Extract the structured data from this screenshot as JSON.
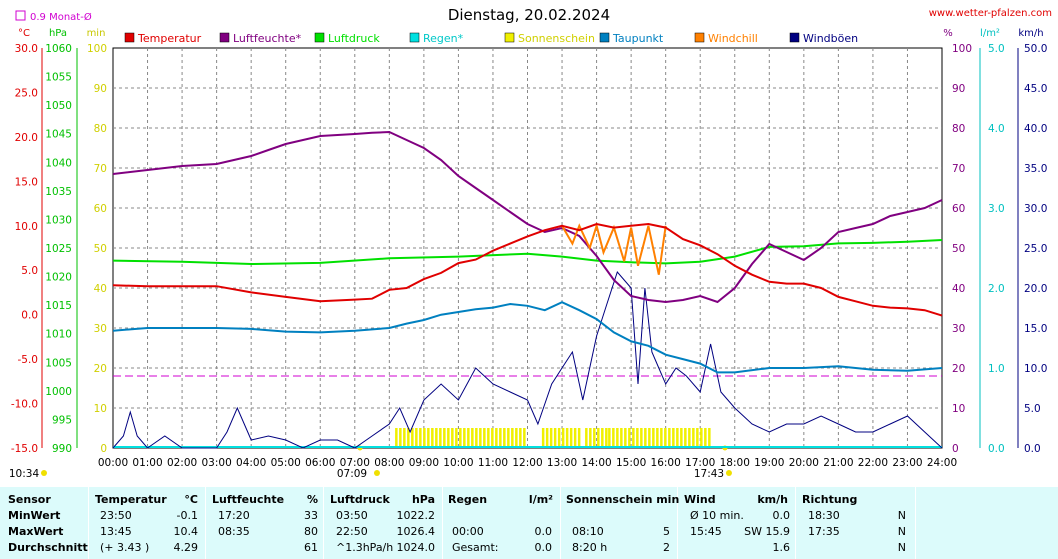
{
  "header": {
    "title": "Dienstag, 20.02.2024",
    "website": "www.wetter-pfalzen.com",
    "rain_box_label": "0.9 Monat-Ø"
  },
  "units": {
    "temp": "°C",
    "hpa": "hPa",
    "min": "min",
    "pct": "%",
    "lm2": "l/m²",
    "kmh": "km/h"
  },
  "legend": [
    {
      "label": "Temperatur",
      "color": "#e00000"
    },
    {
      "label": "Luftfeuchte*",
      "color": "#800080"
    },
    {
      "label": "Luftdruck",
      "color": "#00e000"
    },
    {
      "label": "Regen*",
      "color": "#00e0e0"
    },
    {
      "label": "Sonnenschein",
      "color": "#f0f000"
    },
    {
      "label": "Taupunkt",
      "color": "#0080c0"
    },
    {
      "label": "Windchill",
      "color": "#ff8000"
    },
    {
      "label": "Windböen",
      "color": "#000080"
    }
  ],
  "axes": {
    "temp_ticks": [
      "30.0",
      "25.0",
      "20.0",
      "15.0",
      "10.0",
      "5.0",
      "0.0",
      "-5.0",
      "-10.0",
      "-15.0"
    ],
    "hpa_ticks": [
      "1060",
      "1055",
      "1050",
      "1045",
      "1040",
      "1035",
      "1030",
      "1025",
      "1020",
      "1015",
      "1010",
      "1005",
      "1000",
      "995",
      "990"
    ],
    "min_ticks": [
      "100",
      "90",
      "80",
      "70",
      "60",
      "50",
      "40",
      "30",
      "20",
      "10",
      "0"
    ],
    "pct_ticks": [
      "100",
      "90",
      "80",
      "70",
      "60",
      "50",
      "40",
      "30",
      "20",
      "10",
      "0"
    ],
    "lm2_ticks": [
      "5.0",
      "4.0",
      "3.0",
      "2.0",
      "1.0",
      "0.0"
    ],
    "kmh_ticks": [
      "50.0",
      "45.0",
      "40.0",
      "35.0",
      "30.0",
      "25.0",
      "20.0",
      "15.0",
      "10.0",
      "5.0",
      "0.0"
    ],
    "time_ticks": [
      "00:00",
      "01:00",
      "02:00",
      "03:00",
      "04:00",
      "05:00",
      "06:00",
      "07:00",
      "08:00",
      "09:00",
      "10:00",
      "11:00",
      "12:00",
      "13:00",
      "14:00",
      "15:00",
      "16:00",
      "17:00",
      "18:00",
      "19:00",
      "20:00",
      "21:00",
      "22:00",
      "23:00",
      "24:00"
    ],
    "sunrise": "07:09",
    "sunset": "17:43",
    "now": "10:34"
  },
  "chart_data": {
    "type": "line",
    "title": "Dienstag, 20.02.2024",
    "x_range": [
      "00:00",
      "24:00"
    ],
    "grid": true,
    "legend_position": "top",
    "temp_range_c": [
      -15,
      30
    ],
    "pressure_range_hpa": [
      990,
      1060
    ],
    "sunshine_range_min": [
      0,
      100
    ],
    "humidity_range_pct": [
      0,
      100
    ],
    "rain_range_lm2": [
      0,
      5
    ],
    "wind_range_kmh": [
      0,
      50
    ],
    "rain_monthly_avg_l_m2": 0.9,
    "series": [
      {
        "name": "Temperatur",
        "unit": "°C",
        "color": "#e00000",
        "x": [
          0,
          1,
          2,
          3,
          4,
          5,
          6,
          7,
          7.5,
          8,
          8.5,
          9,
          9.5,
          10,
          10.5,
          11,
          11.5,
          12,
          12.5,
          13,
          13.5,
          14,
          14.5,
          15,
          15.5,
          16,
          16.5,
          17,
          17.5,
          18,
          18.5,
          19,
          19.5,
          20,
          20.5,
          21,
          21.5,
          22,
          22.5,
          23,
          23.5,
          24
        ],
        "y": [
          3.3,
          3.2,
          3.2,
          3.2,
          2.5,
          2.0,
          1.5,
          1.7,
          1.8,
          2.8,
          3.0,
          4.0,
          4.7,
          5.8,
          6.2,
          7.2,
          8.0,
          8.8,
          9.5,
          10.0,
          9.5,
          10.2,
          9.8,
          10.0,
          10.2,
          9.8,
          8.5,
          7.8,
          6.8,
          5.5,
          4.5,
          3.7,
          3.5,
          3.5,
          3.0,
          2.0,
          1.5,
          1.0,
          0.8,
          0.7,
          0.5,
          -0.1
        ]
      },
      {
        "name": "Luftfeuchte*",
        "unit": "%",
        "color": "#800080",
        "x": [
          0,
          1,
          2,
          3,
          4,
          4.5,
          5,
          6,
          7,
          7.5,
          8,
          8.5,
          9,
          9.5,
          10,
          10.5,
          11,
          11.5,
          12,
          12.5,
          13,
          13.5,
          14,
          14.5,
          15,
          15.5,
          16,
          16.5,
          17,
          17.5,
          18,
          18.5,
          19,
          19.5,
          20,
          20.5,
          21,
          21.5,
          22,
          22.5,
          23,
          23.5,
          24
        ],
        "y": [
          68.5,
          69.5,
          70.5,
          71,
          73,
          74.5,
          76,
          78,
          78.5,
          78.8,
          79,
          77,
          75,
          72,
          68,
          65,
          62,
          59,
          56,
          54,
          55,
          53,
          48,
          42,
          38,
          37,
          36.5,
          37,
          38,
          36.5,
          40,
          46,
          51,
          49,
          47,
          50,
          54,
          55,
          56,
          58,
          59,
          60,
          62
        ]
      },
      {
        "name": "Luftdruck",
        "unit": "hPa",
        "color": "#00e000",
        "x": [
          0,
          2,
          4,
          6,
          8,
          10,
          12,
          13,
          14,
          15,
          16,
          17,
          18,
          19,
          20,
          21,
          22,
          23,
          24
        ],
        "y": [
          1022.8,
          1022.6,
          1022.2,
          1022.4,
          1023.2,
          1023.5,
          1024.0,
          1023.5,
          1022.8,
          1022.5,
          1022.3,
          1022.6,
          1023.5,
          1025.2,
          1025.3,
          1025.8,
          1025.9,
          1026.1,
          1026.4
        ]
      },
      {
        "name": "Taupunkt",
        "unit": "°C",
        "color": "#0080c0",
        "x": [
          0,
          1,
          2,
          3,
          4,
          5,
          6,
          7,
          8,
          8.5,
          9,
          9.5,
          10,
          10.5,
          11,
          11.5,
          12,
          12.5,
          13,
          13.5,
          14,
          14.5,
          15,
          15.5,
          16,
          16.5,
          17,
          17.5,
          18,
          19,
          20,
          21,
          22,
          23,
          24
        ],
        "y": [
          -1.8,
          -1.5,
          -1.5,
          -1.5,
          -1.6,
          -1.9,
          -2.0,
          -1.8,
          -1.5,
          -1.0,
          -0.6,
          0.0,
          0.3,
          0.6,
          0.8,
          1.2,
          1.0,
          0.5,
          1.4,
          0.5,
          -0.5,
          -2.0,
          -3.0,
          -3.5,
          -4.5,
          -5.0,
          -5.5,
          -6.5,
          -6.5,
          -6.0,
          -6.0,
          -5.8,
          -6.2,
          -6.3,
          -6.0
        ]
      },
      {
        "name": "Windchill",
        "unit": "°C",
        "color": "#ff8000",
        "x": [
          13,
          13.3,
          13.5,
          13.8,
          14,
          14.2,
          14.5,
          14.8,
          15,
          15.2,
          15.5,
          15.8,
          16
        ],
        "y": [
          10.0,
          8.0,
          10.0,
          7.5,
          10.0,
          7.0,
          9.8,
          6.0,
          9.8,
          5.5,
          10.0,
          4.5,
          10.0
        ]
      },
      {
        "name": "Windböen",
        "unit": "km/h",
        "color": "#000080",
        "x": [
          0,
          0.3,
          0.5,
          0.7,
          1,
          1.5,
          2,
          2.5,
          3,
          3.3,
          3.6,
          4,
          4.5,
          5,
          5.5,
          6,
          6.5,
          7,
          7.5,
          8,
          8.3,
          8.6,
          9,
          9.5,
          10,
          10.5,
          11,
          11.5,
          12,
          12.3,
          12.7,
          13,
          13.3,
          13.6,
          14,
          14.3,
          14.6,
          15,
          15.2,
          15.4,
          15.6,
          15.8,
          16,
          16.3,
          16.6,
          17,
          17.3,
          17.6,
          18,
          18.5,
          19,
          19.5,
          20,
          20.5,
          21,
          21.5,
          22,
          22.5,
          23,
          23.5,
          24
        ],
        "y": [
          0,
          1.5,
          4.5,
          1.5,
          0,
          1.5,
          0,
          0,
          0,
          2,
          5,
          1,
          1.5,
          1,
          0,
          1,
          1,
          0,
          1.5,
          3,
          5,
          2,
          6,
          8,
          6,
          10,
          8,
          7,
          6,
          3,
          8,
          10,
          12,
          6,
          14,
          18,
          22,
          20,
          8,
          20,
          12,
          10,
          8,
          10,
          9,
          7,
          13,
          7,
          5,
          3,
          2,
          3,
          3,
          4,
          3,
          2,
          2,
          3,
          4,
          2,
          0
        ]
      }
    ],
    "sunshine_bars": [
      {
        "from": "08:10",
        "to": "11:55"
      },
      {
        "from": "12:25",
        "to": "13:30"
      },
      {
        "from": "13:40",
        "to": "14:15"
      },
      {
        "from": "14:20",
        "to": "17:15"
      }
    ]
  },
  "stats": {
    "headers": [
      {
        "name": "Sensor",
        "unit": ""
      },
      {
        "name": "Temperatur",
        "unit": "°C"
      },
      {
        "name": "Luftfeuchte",
        "unit": "%"
      },
      {
        "name": "Luftdruck",
        "unit": "hPa"
      },
      {
        "name": "Regen",
        "unit": "l/m²"
      },
      {
        "name": "Sonnenschein min",
        "unit": ""
      },
      {
        "name": "Wind",
        "unit": "km/h"
      },
      {
        "name": "Richtung",
        "unit": ""
      }
    ],
    "rows": [
      {
        "label": "MinWert",
        "temp": [
          "23:50",
          "-0.1"
        ],
        "hum": [
          "17:20",
          "33"
        ],
        "press": [
          "03:50",
          "1022.2"
        ],
        "rain": [
          "",
          ""
        ],
        "sun": [
          "",
          ""
        ],
        "wind": [
          "Ø 10 min.",
          "0.0"
        ],
        "dir": [
          "18:30",
          "N"
        ]
      },
      {
        "label": "MaxWert",
        "temp": [
          "13:45",
          "10.4"
        ],
        "hum": [
          "08:35",
          "80"
        ],
        "press": [
          "22:50",
          "1026.4"
        ],
        "rain": [
          "00:00",
          "0.0"
        ],
        "sun": [
          "08:10",
          "5"
        ],
        "wind": [
          "15:45",
          "SW 15.9"
        ],
        "dir": [
          "17:35",
          "N"
        ]
      },
      {
        "label": "Durchschnitt",
        "temp": [
          "(+ 3.43 )",
          "4.29"
        ],
        "hum": [
          "",
          "61"
        ],
        "press": [
          "^1.3hPa/h",
          "1024.0"
        ],
        "rain": [
          "Gesamt:",
          "0.0"
        ],
        "sun": [
          "8:20 h",
          "2"
        ],
        "wind": [
          "",
          "1.6"
        ],
        "dir": [
          "",
          "N"
        ]
      }
    ]
  }
}
